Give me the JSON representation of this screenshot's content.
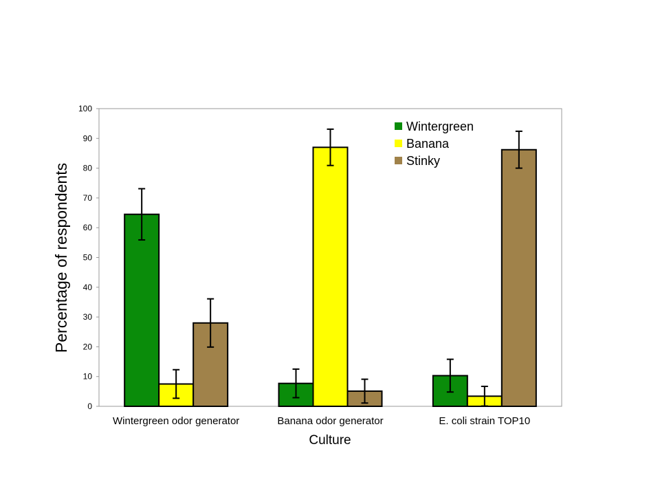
{
  "chart_data": {
    "type": "bar",
    "title": "",
    "xlabel": "Culture",
    "ylabel": "Percentage of respondents",
    "ylim": [
      0,
      100
    ],
    "yticks": [
      0,
      10,
      20,
      30,
      40,
      50,
      60,
      70,
      80,
      90,
      100
    ],
    "categories": [
      "Wintergreen odor generator",
      "Banana odor generator",
      "E. coli strain TOP10"
    ],
    "series": [
      {
        "name": "Wintergreen",
        "color": "#0a8c0a",
        "values": [
          64.5,
          7.7,
          10.3
        ],
        "errors": [
          8.6,
          4.8,
          5.5
        ]
      },
      {
        "name": "Banana",
        "color": "#ffff00",
        "values": [
          7.5,
          87.0,
          3.4
        ],
        "errors": [
          4.8,
          6.1,
          3.3
        ]
      },
      {
        "name": "Stinky",
        "color": "#a0824a",
        "values": [
          28.0,
          5.1,
          86.2
        ],
        "errors": [
          8.1,
          4.0,
          6.2
        ]
      }
    ],
    "legend_position": "top-right",
    "grid": false
  }
}
